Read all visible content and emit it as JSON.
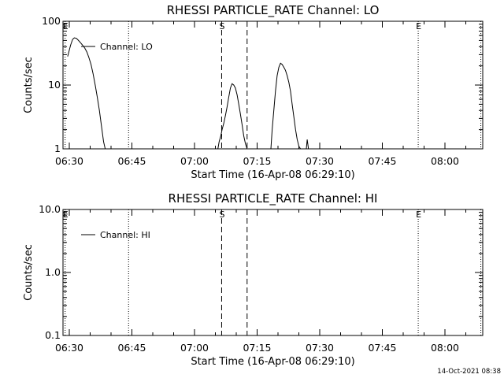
{
  "footer_timestamp": "14-Oct-2021 08:38",
  "chart_data": [
    {
      "type": "line",
      "title": "RHESSI PARTICLE_RATE Channel: LO",
      "xlabel": "Start Time (16-Apr-08 06:29:10)",
      "ylabel": "Counts/sec",
      "yscale": "log",
      "xlim": [
        -10,
        1290
      ],
      "ylim": [
        1,
        100
      ],
      "x_unit": "minutes after 06:30",
      "x_ticks": [
        0,
        15,
        30,
        45,
        60,
        75,
        90
      ],
      "x_tick_labels": [
        "06:30",
        "06:45",
        "07:00",
        "07:15",
        "07:30",
        "07:45",
        "08:00"
      ],
      "y_ticks": [
        1,
        10,
        100
      ],
      "y_tick_labels": [
        "1",
        "10",
        "100"
      ],
      "legend": {
        "position": "top-left",
        "entries": [
          "Channel: LO"
        ]
      },
      "grid": false,
      "series": [
        {
          "name": "Channel: LO",
          "segments": [
            {
              "x": [
                -0.4,
                0.3,
                0.8,
                1.2,
                1.7,
                2.2,
                2.7,
                3.2,
                3.7,
                4.2,
                4.7,
                5.2,
                5.7,
                6.2,
                6.7,
                7.2,
                7.7,
                8.2,
                8.6
              ],
              "y": [
                28,
                42,
                52,
                55,
                54,
                50,
                46,
                42,
                38,
                33,
                27,
                21,
                15,
                10,
                6.5,
                4,
                2.3,
                1.3,
                1
              ]
            },
            {
              "x": [
                35.6,
                35.9,
                36.3,
                36.6,
                37.0,
                37.4,
                37.8,
                38.2,
                38.6,
                39.0,
                39.4,
                39.8,
                40.2,
                40.6,
                41.0,
                41.4,
                41.8,
                42.2,
                42.6
              ],
              "y": [
                1,
                1.3,
                1.6,
                2.0,
                2.5,
                3.3,
                4.5,
                6.5,
                9,
                10.5,
                10,
                9,
                7,
                5,
                3.5,
                2.4,
                1.6,
                1.2,
                1
              ]
            },
            {
              "x": [
                48.3,
                48.6,
                49.0,
                49.4,
                49.8,
                50.2,
                50.6,
                51.0,
                51.4,
                51.8,
                52.2,
                52.6,
                53.0,
                53.4,
                53.8,
                54.2,
                54.6,
                55.0,
                55.4
              ],
              "y": [
                1,
                2,
                4,
                8,
                14,
                19,
                22,
                21,
                19,
                17,
                14,
                11,
                8,
                5,
                3.2,
                2,
                1.4,
                1.1,
                1
              ]
            },
            {
              "x": [
                56.8,
                57.0,
                57.3
              ],
              "y": [
                1,
                1.4,
                1
              ]
            }
          ]
        }
      ],
      "vertical_lines": [
        {
          "x": -1,
          "style": "dotted",
          "label": "E"
        },
        {
          "x": 14.2,
          "style": "dotted",
          "label": ""
        },
        {
          "x": 36.5,
          "style": "dashed",
          "label": "S"
        },
        {
          "x": 42.6,
          "style": "dashed",
          "label": ""
        },
        {
          "x": 83.6,
          "style": "dotted",
          "label": "E"
        },
        {
          "x": 98.6,
          "style": "dotted",
          "label": ""
        }
      ]
    },
    {
      "type": "line",
      "title": "RHESSI PARTICLE_RATE Channel: HI",
      "xlabel": "Start Time (16-Apr-08 06:29:10)",
      "ylabel": "Counts/sec",
      "yscale": "log",
      "xlim": [
        -10,
        1290
      ],
      "ylim": [
        0.1,
        10
      ],
      "x_unit": "minutes after 06:30",
      "x_ticks": [
        0,
        15,
        30,
        45,
        60,
        75,
        90
      ],
      "x_tick_labels": [
        "06:30",
        "06:45",
        "07:00",
        "07:15",
        "07:30",
        "07:45",
        "08:00"
      ],
      "y_ticks": [
        0.1,
        1,
        10
      ],
      "y_tick_labels": [
        "0.1",
        "1.0",
        "10.0"
      ],
      "legend": {
        "position": "top-left",
        "entries": [
          "Channel: HI"
        ]
      },
      "grid": false,
      "series": [
        {
          "name": "Channel: HI",
          "segments": []
        }
      ],
      "vertical_lines": [
        {
          "x": -1,
          "style": "dotted",
          "label": "E"
        },
        {
          "x": 14.2,
          "style": "dotted",
          "label": ""
        },
        {
          "x": 36.5,
          "style": "dashed",
          "label": "S"
        },
        {
          "x": 42.6,
          "style": "dashed",
          "label": ""
        },
        {
          "x": 83.6,
          "style": "dotted",
          "label": "E"
        },
        {
          "x": 98.6,
          "style": "dotted",
          "label": ""
        }
      ]
    }
  ]
}
